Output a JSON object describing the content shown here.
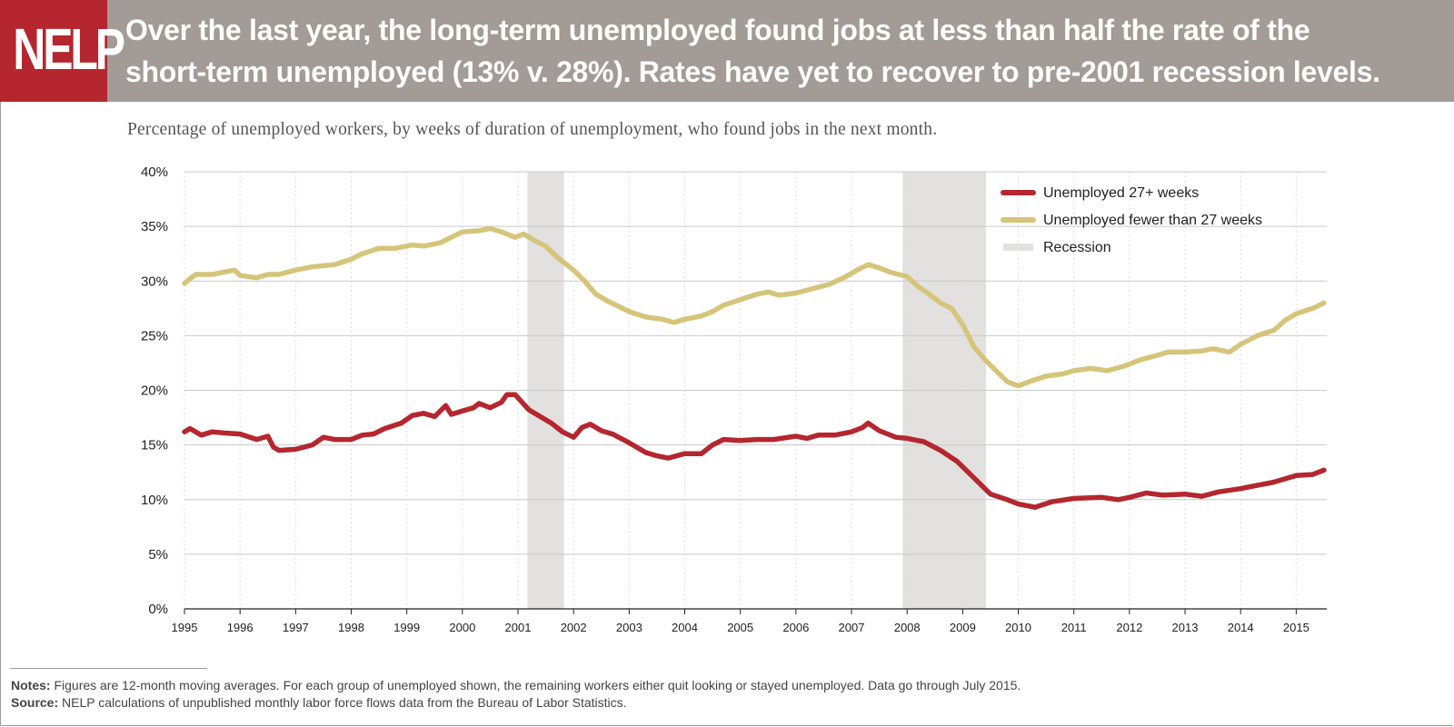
{
  "logo": {
    "text": "NELP"
  },
  "headline": {
    "line1": "Over the last year, the long-term unemployed found jobs at less than half the rate of the",
    "line2": "short-term unemployed (13% v. 28%).  Rates have yet to recover to pre-2001 recession levels."
  },
  "subtitle": "Percentage of unemployed workers, by weeks of duration of unemployment, who found jobs in the next month.",
  "notes": {
    "label": "Notes:",
    "text": "Figures are 12-month moving averages. For each group of unemployed shown, the remaining workers either quit looking or stayed unemployed. Data go through July 2015."
  },
  "source": {
    "label": "Source:",
    "text": "NELP calculations of unpublished monthly labor force flows data from the Bureau of Labor Statistics."
  },
  "colors": {
    "banner": "#a39b95",
    "logo_bg": "#b5262e",
    "long_term": "#b5262e",
    "short_term": "#d5c47a",
    "recession": "#e3e1df",
    "gridline": "#c9c9c9"
  },
  "chart_data": {
    "type": "line",
    "title": "",
    "xlabel": "",
    "ylabel": "",
    "xlim": [
      1995,
      2015.55
    ],
    "ylim": [
      0,
      40
    ],
    "y_ticks": [
      "0%",
      "5%",
      "10%",
      "15%",
      "20%",
      "25%",
      "30%",
      "35%",
      "40%"
    ],
    "x_ticks": [
      "1995",
      "1996",
      "1997",
      "1998",
      "1999",
      "2000",
      "2001",
      "2002",
      "2003",
      "2004",
      "2005",
      "2006",
      "2007",
      "2008",
      "2009",
      "2010",
      "2011",
      "2012",
      "2013",
      "2014",
      "2015"
    ],
    "grid": "horizontal",
    "legend_position": "top-right",
    "recessions": [
      {
        "start": 2001.17,
        "end": 2001.83
      },
      {
        "start": 2007.92,
        "end": 2009.42
      }
    ],
    "legend": [
      {
        "label": "Unemployed 27+ weeks",
        "color": "#b5262e",
        "kind": "line"
      },
      {
        "label": "Unemployed fewer than 27 weeks",
        "color": "#d5c47a",
        "kind": "line"
      },
      {
        "label": "Recession",
        "color": "#e3e1df",
        "kind": "area"
      }
    ],
    "series": [
      {
        "name": "Unemployed 27+ weeks",
        "color": "#b5262e",
        "x": [
          1995.0,
          1995.1,
          1995.3,
          1995.5,
          1995.7,
          1996.0,
          1996.3,
          1996.5,
          1996.6,
          1996.7,
          1997.0,
          1997.3,
          1997.5,
          1997.7,
          1998.0,
          1998.2,
          1998.4,
          1998.6,
          1998.9,
          1999.1,
          1999.3,
          1999.5,
          1999.7,
          1999.8,
          2000.0,
          2000.2,
          2000.3,
          2000.5,
          2000.7,
          2000.8,
          2000.95,
          2001.2,
          2001.4,
          2001.6,
          2001.8,
          2002.0,
          2002.15,
          2002.3,
          2002.5,
          2002.7,
          2003.0,
          2003.3,
          2003.5,
          2003.7,
          2004.0,
          2004.3,
          2004.5,
          2004.7,
          2005.0,
          2005.3,
          2005.6,
          2006.0,
          2006.2,
          2006.4,
          2006.7,
          2007.0,
          2007.2,
          2007.3,
          2007.5,
          2007.8,
          2008.0,
          2008.3,
          2008.6,
          2008.9,
          2009.2,
          2009.5,
          2009.8,
          2010.0,
          2010.3,
          2010.6,
          2011.0,
          2011.5,
          2011.8,
          2012.0,
          2012.3,
          2012.6,
          2013.0,
          2013.3,
          2013.6,
          2014.0,
          2014.3,
          2014.6,
          2014.8,
          2015.0,
          2015.3,
          2015.5
        ],
        "values": [
          16.2,
          16.5,
          15.9,
          16.2,
          16.1,
          16.0,
          15.5,
          15.8,
          14.8,
          14.5,
          14.6,
          15.0,
          15.7,
          15.5,
          15.5,
          15.9,
          16.0,
          16.5,
          17.0,
          17.7,
          17.9,
          17.6,
          18.6,
          17.8,
          18.1,
          18.4,
          18.8,
          18.4,
          18.9,
          19.6,
          19.6,
          18.2,
          17.6,
          17.0,
          16.2,
          15.7,
          16.6,
          16.9,
          16.3,
          16.0,
          15.2,
          14.3,
          14.0,
          13.8,
          14.2,
          14.2,
          15.0,
          15.5,
          15.4,
          15.5,
          15.5,
          15.8,
          15.6,
          15.9,
          15.9,
          16.2,
          16.6,
          17.0,
          16.3,
          15.7,
          15.6,
          15.3,
          14.5,
          13.5,
          12.0,
          10.5,
          10.0,
          9.6,
          9.3,
          9.8,
          10.1,
          10.2,
          10.0,
          10.2,
          10.6,
          10.4,
          10.5,
          10.3,
          10.7,
          11.0,
          11.3,
          11.6,
          11.9,
          12.2,
          12.3,
          12.7
        ]
      },
      {
        "name": "Unemployed fewer than 27 weeks",
        "color": "#d5c47a",
        "x": [
          1995.0,
          1995.2,
          1995.5,
          1995.7,
          1995.9,
          1996.0,
          1996.3,
          1996.5,
          1996.7,
          1997.0,
          1997.3,
          1997.5,
          1997.7,
          1998.0,
          1998.2,
          1998.5,
          1998.8,
          1999.1,
          1999.3,
          1999.6,
          1999.8,
          2000.0,
          2000.3,
          2000.5,
          2000.7,
          2000.95,
          2001.1,
          2001.3,
          2001.5,
          2001.7,
          2002.0,
          2002.2,
          2002.4,
          2002.6,
          2002.8,
          2003.0,
          2003.3,
          2003.6,
          2003.8,
          2004.0,
          2004.3,
          2004.5,
          2004.7,
          2005.0,
          2005.3,
          2005.5,
          2005.7,
          2006.0,
          2006.3,
          2006.6,
          2006.9,
          2007.1,
          2007.3,
          2007.5,
          2007.7,
          2008.0,
          2008.2,
          2008.4,
          2008.6,
          2008.8,
          2009.0,
          2009.2,
          2009.4,
          2009.6,
          2009.8,
          2010.0,
          2010.2,
          2010.5,
          2010.8,
          2011.0,
          2011.3,
          2011.6,
          2011.9,
          2012.2,
          2012.5,
          2012.7,
          2013.0,
          2013.3,
          2013.5,
          2013.8,
          2014.0,
          2014.3,
          2014.6,
          2014.8,
          2015.0,
          2015.3,
          2015.5
        ],
        "values": [
          29.8,
          30.6,
          30.6,
          30.8,
          31.0,
          30.5,
          30.3,
          30.6,
          30.6,
          31.0,
          31.3,
          31.4,
          31.5,
          32.0,
          32.5,
          33.0,
          33.0,
          33.3,
          33.2,
          33.5,
          34.0,
          34.5,
          34.6,
          34.8,
          34.5,
          34.0,
          34.3,
          33.7,
          33.2,
          32.2,
          31.0,
          30.0,
          28.8,
          28.2,
          27.7,
          27.2,
          26.7,
          26.5,
          26.2,
          26.5,
          26.8,
          27.2,
          27.8,
          28.3,
          28.8,
          29.0,
          28.7,
          28.9,
          29.3,
          29.7,
          30.4,
          31.0,
          31.5,
          31.2,
          30.8,
          30.4,
          29.5,
          28.8,
          28.0,
          27.5,
          26.0,
          24.0,
          22.8,
          21.8,
          20.8,
          20.4,
          20.8,
          21.3,
          21.5,
          21.8,
          22.0,
          21.8,
          22.2,
          22.8,
          23.2,
          23.5,
          23.5,
          23.6,
          23.8,
          23.5,
          24.2,
          25.0,
          25.5,
          26.4,
          27.0,
          27.5,
          28.0
        ]
      }
    ]
  }
}
